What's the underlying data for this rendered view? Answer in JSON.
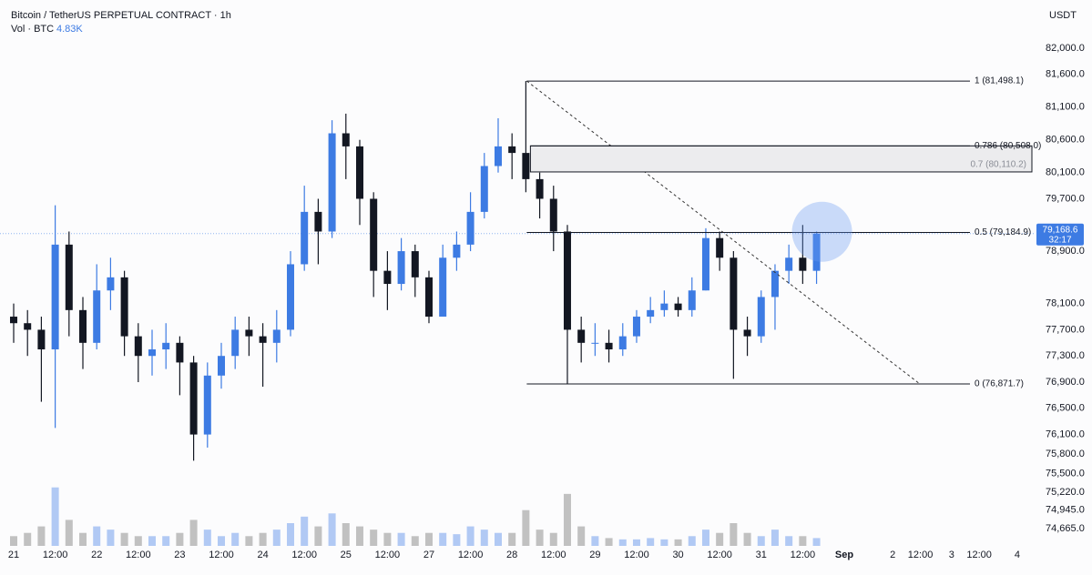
{
  "chart_data": {
    "type": "candlestick",
    "title": "Bitcoin / TetherUS PERPETUAL CONTRACT · 1h",
    "volume_label": "Vol · BTC",
    "volume_last": "4.83K",
    "currency": "USDT",
    "up_color": "#3d7be3",
    "down_color": "#131722",
    "x": [
      0,
      4,
      8,
      12,
      16,
      20,
      24,
      28,
      32,
      36,
      40,
      44,
      48,
      52,
      56,
      60,
      64,
      68,
      72,
      76,
      80,
      84,
      88,
      92,
      96,
      100,
      104,
      108,
      112,
      116,
      120,
      124,
      128,
      132,
      136,
      140,
      144,
      148,
      152,
      156,
      160,
      164,
      168,
      172,
      176,
      180,
      184,
      188,
      192,
      196,
      200,
      204,
      208,
      212,
      216,
      220,
      224,
      228,
      232
    ],
    "open": [
      77900,
      77800,
      77700,
      77400,
      79000,
      78000,
      77500,
      78300,
      78500,
      77600,
      77300,
      77400,
      77500,
      77200,
      76100,
      77000,
      77300,
      77700,
      77600,
      77500,
      77700,
      78700,
      79500,
      79200,
      80700,
      80500,
      79700,
      78600,
      78400,
      78900,
      78500,
      77900,
      78800,
      79000,
      79500,
      80200,
      80500,
      80400,
      80000,
      79700,
      79200,
      77700,
      77500,
      77500,
      77400,
      77600,
      77900,
      78000,
      78100,
      78000,
      78300,
      79100,
      78800,
      77700,
      77600,
      78200,
      78600,
      78800,
      78600
    ],
    "high": [
      78100,
      78000,
      77900,
      79600,
      79200,
      78200,
      78700,
      78800,
      78600,
      77800,
      77700,
      77800,
      77600,
      77300,
      77200,
      77500,
      77900,
      77900,
      77800,
      78000,
      78900,
      79900,
      79700,
      80900,
      81000,
      80600,
      79800,
      78900,
      79100,
      79000,
      78600,
      79000,
      79200,
      79800,
      80400,
      80930,
      80700,
      81498.1,
      80100,
      79900,
      79300,
      77900,
      77800,
      77700,
      77800,
      78000,
      78200,
      78300,
      78200,
      78500,
      79250,
      79200,
      78900,
      77900,
      78300,
      78700,
      79000,
      79300,
      79200
    ],
    "low": [
      77500,
      77300,
      76600,
      76200,
      77600,
      77100,
      77400,
      78000,
      77300,
      76900,
      77000,
      77100,
      76700,
      75700,
      75900,
      76800,
      77100,
      77300,
      76830,
      77200,
      77600,
      78600,
      78700,
      79100,
      80000,
      79300,
      78200,
      78000,
      78300,
      78200,
      77800,
      77900,
      78600,
      78900,
      79400,
      80100,
      80000,
      79800,
      79400,
      78900,
      76871.7,
      77200,
      77300,
      77200,
      77300,
      77500,
      77800,
      77900,
      77900,
      77900,
      78300,
      78600,
      76950,
      77300,
      77500,
      77700,
      78400,
      78400,
      78400
    ],
    "close": [
      77800,
      77700,
      77400,
      79000,
      78000,
      77500,
      78300,
      78500,
      77600,
      77300,
      77400,
      77500,
      77200,
      76100,
      77000,
      77300,
      77700,
      77600,
      77500,
      77700,
      78700,
      79500,
      79200,
      80700,
      80500,
      79700,
      78600,
      78400,
      78900,
      78500,
      77900,
      78800,
      79000,
      79500,
      80200,
      80500,
      80400,
      80000,
      79700,
      79200,
      77700,
      77500,
      77500,
      77400,
      77600,
      77900,
      78000,
      78100,
      78000,
      78300,
      79100,
      78800,
      77700,
      77600,
      78200,
      78600,
      78800,
      78600,
      79168.6
    ],
    "volume": [
      1.5,
      2,
      3,
      9,
      4,
      2,
      3,
      2.5,
      2,
      1.5,
      1.5,
      1.5,
      2,
      4,
      2.5,
      1.5,
      2,
      1.5,
      2,
      2.5,
      3.5,
      4.5,
      3,
      5,
      3.5,
      3,
      2.5,
      2,
      2,
      1.5,
      2,
      2,
      1.8,
      3,
      2.5,
      2,
      2,
      5.5,
      2.5,
      2,
      8,
      3,
      1.5,
      1.2,
      1,
      1,
      1.2,
      1,
      1,
      1.5,
      2.5,
      2,
      3.5,
      2,
      1.5,
      2.5,
      1.5,
      1.5,
      1.2
    ],
    "vlim": [
      0,
      14
    ],
    "xlim": [
      -3.95,
      294.75
    ],
    "xticks": [
      {
        "value": 0,
        "label": "21"
      },
      {
        "value": 12,
        "label": "12:00"
      },
      {
        "value": 24,
        "label": "22"
      },
      {
        "value": 36,
        "label": "12:00"
      },
      {
        "value": 48,
        "label": "23"
      },
      {
        "value": 60,
        "label": "12:00"
      },
      {
        "value": 72,
        "label": "24"
      },
      {
        "value": 84,
        "label": "12:00"
      },
      {
        "value": 96,
        "label": "25"
      },
      {
        "value": 108,
        "label": "12:00"
      },
      {
        "value": 120,
        "label": "27"
      },
      {
        "value": 132,
        "label": "12:00"
      },
      {
        "value": 144,
        "label": "28"
      },
      {
        "value": 156,
        "label": "12:00"
      },
      {
        "value": 168,
        "label": "29"
      },
      {
        "value": 180,
        "label": "12:00"
      },
      {
        "value": 192,
        "label": "30"
      },
      {
        "value": 204,
        "label": "12:00"
      },
      {
        "value": 216,
        "label": "31"
      },
      {
        "value": 228,
        "label": "12:00"
      },
      {
        "value": 240,
        "label": "Sep"
      },
      {
        "value": 254,
        "label": "2"
      },
      {
        "value": 262,
        "label": "12:00"
      },
      {
        "value": 271,
        "label": "3"
      },
      {
        "value": 279,
        "label": "12:00"
      },
      {
        "value": 290,
        "label": "4"
      }
    ],
    "ylim": [
      74260,
      82180
    ],
    "yticks": [
      {
        "value": 82000,
        "label": "82,000.0"
      },
      {
        "value": 81600,
        "label": "81,600.0"
      },
      {
        "value": 81100,
        "label": "81,100.0"
      },
      {
        "value": 80600,
        "label": "80,600.0"
      },
      {
        "value": 80100,
        "label": "80,100.0"
      },
      {
        "value": 79700,
        "label": "79,700.0"
      },
      {
        "value": 78900,
        "label": "78,900.0"
      },
      {
        "value": 78100,
        "label": "78,100.0"
      },
      {
        "value": 77700,
        "label": "77,700.0"
      },
      {
        "value": 77300,
        "label": "77,300.0"
      },
      {
        "value": 76900,
        "label": "76,900.0"
      },
      {
        "value": 76500,
        "label": "76,500.0"
      },
      {
        "value": 76100,
        "label": "76,100.0"
      },
      {
        "value": 75800,
        "label": "75,800.0"
      },
      {
        "value": 75500,
        "label": "75,500.0"
      },
      {
        "value": 75220,
        "label": "75,220.0"
      },
      {
        "value": 74945,
        "label": "74,945.0"
      },
      {
        "value": 74665,
        "label": "74,665.0"
      }
    ],
    "last_price": {
      "value": 79168.6,
      "label": "79,168.6"
    },
    "countdown": "32:17",
    "fib_levels": [
      {
        "value": 81498.1,
        "label": "1 (81,498.1)"
      },
      {
        "value": 80508.0,
        "label": "0.786 (80,508.0)"
      },
      {
        "value": 80110.2,
        "label": "0.7 (80,110.2)"
      },
      {
        "value": 79184.9,
        "label": "0.5 (79,184.9)"
      },
      {
        "value": 76871.7,
        "label": "0 (76,871.7)"
      }
    ]
  }
}
